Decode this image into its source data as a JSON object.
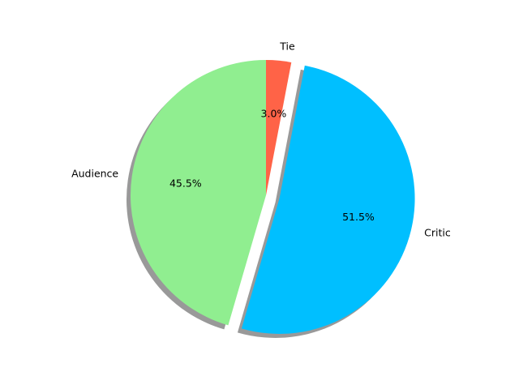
{
  "chart_data": {
    "type": "pie",
    "labels": [
      "Critic",
      "Audience",
      "Tie"
    ],
    "values": [
      51.5,
      45.5,
      3.0
    ],
    "percent_labels": [
      "51.5%",
      "45.5%",
      "3.0%"
    ],
    "colors": [
      "#00bfff",
      "#90ee90",
      "#ff6347"
    ],
    "exploded": [
      true,
      false,
      false
    ],
    "shadow": true,
    "title": "",
    "legend": "none"
  }
}
